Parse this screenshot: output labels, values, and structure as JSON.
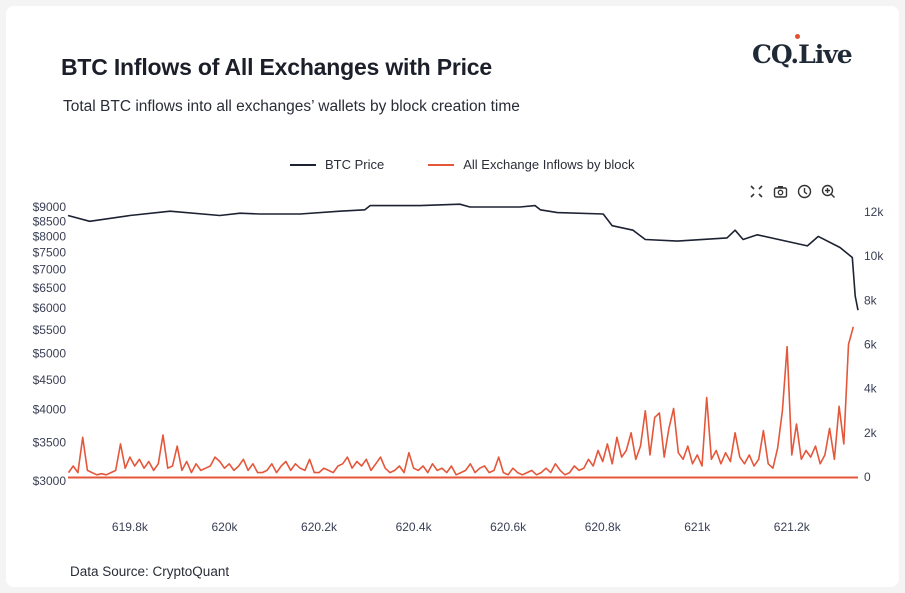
{
  "header": {
    "title": "BTC Inflows of All Exchanges with Price",
    "subtitle": "Total BTC inflows into all exchanges’ wallets by block creation time",
    "logo_text": "CQ.Live"
  },
  "toolbar": {
    "icons": [
      "autoscale-icon",
      "camera-icon",
      "clock-icon",
      "zoom-in-icon"
    ]
  },
  "footer": {
    "source": "Data Source: CryptoQuant"
  },
  "colors": {
    "price": "#1d2233",
    "inflow": "#e4573a",
    "accent": "#e5502f"
  },
  "chart_data": {
    "type": "line",
    "title": "BTC Inflows of All Exchanges with Price",
    "legend_position": "top-center",
    "grid": false,
    "x_axis": {
      "range": [
        619669,
        621340
      ],
      "ticks": [
        619800,
        620000,
        620200,
        620400,
        620600,
        620800,
        621000,
        621200
      ],
      "tick_labels": [
        "619.8k",
        "620k",
        "620.2k",
        "620.4k",
        "620.6k",
        "620.8k",
        "621k",
        "621.2k"
      ]
    },
    "y_left": {
      "scale": "log",
      "range": [
        3000,
        9000
      ],
      "ticks": [
        9000,
        8500,
        8000,
        7500,
        7000,
        6500,
        6000,
        5500,
        5000,
        4500,
        4000,
        3500,
        3000
      ],
      "tick_labels": [
        "$9000",
        "$8500",
        "$8000",
        "$7500",
        "$7000",
        "$6500",
        "$6000",
        "$5500",
        "$5000",
        "$4500",
        "$4000",
        "$3500",
        "$3000"
      ]
    },
    "y_right": {
      "scale": "linear",
      "range": [
        0,
        12000
      ],
      "ticks": [
        12000,
        10000,
        8000,
        6000,
        4000,
        2000,
        0
      ],
      "tick_labels": [
        "12k",
        "10k",
        "8k",
        "6k",
        "4k",
        "2k",
        "0"
      ]
    },
    "series": [
      {
        "name": "BTC Price",
        "axis": "left",
        "x": [
          619669,
          619715,
          619800,
          619885,
          619990,
          620033,
          620075,
          620160,
          620244,
          620297,
          620308,
          620414,
          620498,
          620519,
          620625,
          620657,
          620668,
          620704,
          620801,
          620820,
          620864,
          620890,
          620958,
          621063,
          621080,
          621097,
          621127,
          621233,
          621256,
          621302,
          621328,
          621334,
          621340
        ],
        "y": [
          8700,
          8500,
          8700,
          8850,
          8700,
          8780,
          8750,
          8750,
          8850,
          8900,
          9050,
          9050,
          9100,
          9000,
          9000,
          9050,
          8900,
          8800,
          8750,
          8350,
          8200,
          7900,
          7850,
          7950,
          8200,
          7900,
          8050,
          7700,
          8000,
          7650,
          7350,
          6300,
          5950
        ]
      },
      {
        "name": "All Exchange Inflows by block",
        "axis": "right",
        "x_start": 619670,
        "x_step": 10,
        "y": [
          200,
          500,
          200,
          1800,
          300,
          200,
          100,
          150,
          100,
          200,
          300,
          1500,
          400,
          900,
          500,
          800,
          400,
          700,
          300,
          600,
          1900,
          400,
          500,
          1400,
          300,
          700,
          200,
          600,
          300,
          400,
          500,
          900,
          700,
          400,
          600,
          300,
          500,
          800,
          300,
          600,
          200,
          200,
          300,
          600,
          200,
          500,
          700,
          300,
          600,
          400,
          300,
          800,
          200,
          200,
          400,
          300,
          200,
          500,
          600,
          900,
          400,
          700,
          500,
          800,
          300,
          600,
          900,
          400,
          200,
          300,
          500,
          200,
          1100,
          400,
          300,
          500,
          200,
          600,
          300,
          400,
          200,
          500,
          100,
          200,
          300,
          600,
          200,
          400,
          500,
          200,
          300,
          900,
          200,
          100,
          400,
          200,
          100,
          200,
          300,
          100,
          200,
          400,
          200,
          600,
          300,
          100,
          200,
          500,
          300,
          400,
          800,
          500,
          1200,
          700,
          1500,
          600,
          1800,
          900,
          1200,
          2000,
          800,
          1400,
          3000,
          1000,
          2700,
          2900,
          900,
          2200,
          3100,
          1100,
          800,
          1400,
          600,
          1000,
          500,
          3600,
          800,
          1200,
          600,
          1100,
          700,
          2000,
          900,
          600,
          1000,
          500,
          800,
          2100,
          600,
          400,
          1300,
          3000,
          5900,
          1000,
          2400,
          800,
          1200,
          900,
          1400,
          600,
          1000,
          2200,
          800,
          3200,
          1500,
          6000,
          6800
        ]
      }
    ]
  }
}
